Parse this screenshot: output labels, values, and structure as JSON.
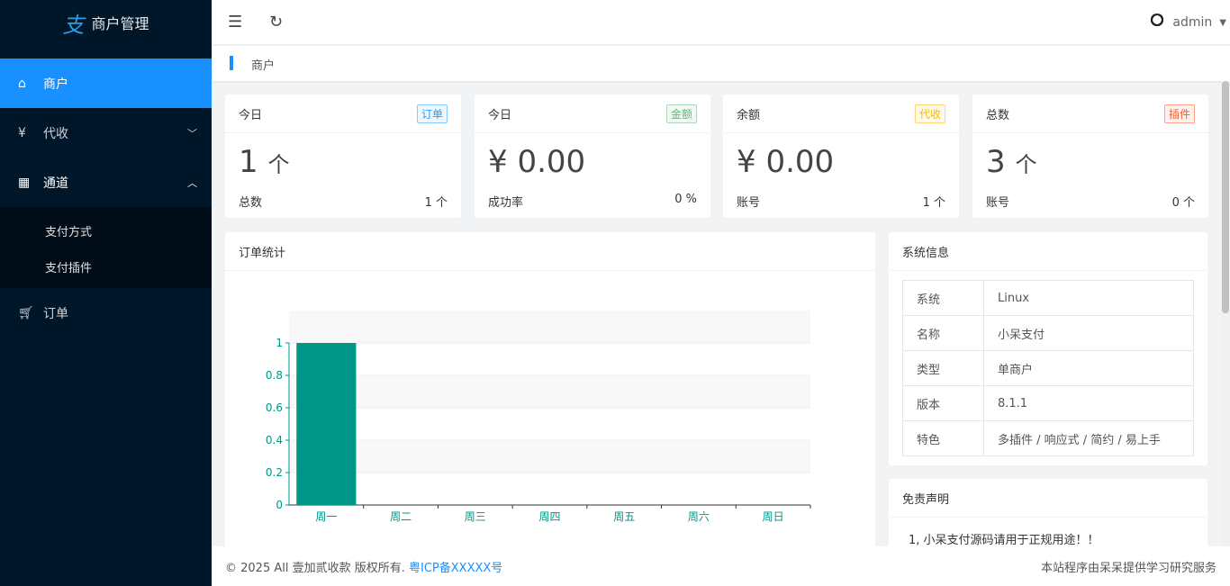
{
  "app": {
    "title": "商户管理",
    "logo_glyph": "支"
  },
  "sidebar": {
    "items": [
      {
        "label": "商户",
        "icon": "home-icon",
        "active": true
      },
      {
        "label": "代收",
        "icon": "yen-icon",
        "expanded": false
      },
      {
        "label": "通道",
        "icon": "apps-icon",
        "expanded": true,
        "children": [
          {
            "label": "支付方式"
          },
          {
            "label": "支付插件"
          }
        ]
      },
      {
        "label": "订单",
        "icon": "cart-icon"
      }
    ]
  },
  "header": {
    "user": "admin"
  },
  "breadcrumb": "商户",
  "cards": [
    {
      "title": "今日",
      "tag": "订单",
      "tag_color": "#1e9fff",
      "value": "1",
      "unit": "个",
      "foot_label": "总数",
      "foot_value": "1 个"
    },
    {
      "title": "今日",
      "tag": "金额",
      "tag_color": "#5fb878",
      "value": "¥ 0.00",
      "unit": "",
      "foot_label": "成功率",
      "foot_value": "0 %"
    },
    {
      "title": "余额",
      "tag": "代收",
      "tag_color": "#ffb800",
      "value": "¥ 0.00",
      "unit": "",
      "foot_label": "账号",
      "foot_value": "1 个"
    },
    {
      "title": "总数",
      "tag": "插件",
      "tag_color": "#ff5722",
      "value": "3",
      "unit": "个",
      "foot_label": "账号",
      "foot_value": "0 个"
    }
  ],
  "order_panel": {
    "title": "订单统计"
  },
  "chart_data": {
    "type": "bar",
    "categories": [
      "周一",
      "周二",
      "周三",
      "周四",
      "周五",
      "周六",
      "周日"
    ],
    "values": [
      1,
      0,
      0,
      0,
      0,
      0,
      0
    ],
    "ylim": [
      0,
      1
    ],
    "yticks": [
      "0",
      "0.2",
      "0.4",
      "0.6",
      "0.8",
      "1"
    ],
    "color": "#009688",
    "grid": true
  },
  "sysinfo": {
    "title": "系统信息",
    "rows": [
      [
        "系统",
        "Linux"
      ],
      [
        "名称",
        "小呆支付"
      ],
      [
        "类型",
        "单商户"
      ],
      [
        "版本",
        "8.1.1"
      ],
      [
        "特色",
        "多插件 / 响应式 / 简约 / 易上手"
      ]
    ]
  },
  "disclaimer": {
    "title": "免责声明",
    "lines": [
      "1, 小呆支付源码请用于正规用途！！"
    ]
  },
  "footer": {
    "copyright": "© 2025 All 壹加贰收款 版权所有.",
    "icp": "粤ICP备XXXXX号",
    "right": "本站程序由呆呆提供学习研究服务"
  }
}
